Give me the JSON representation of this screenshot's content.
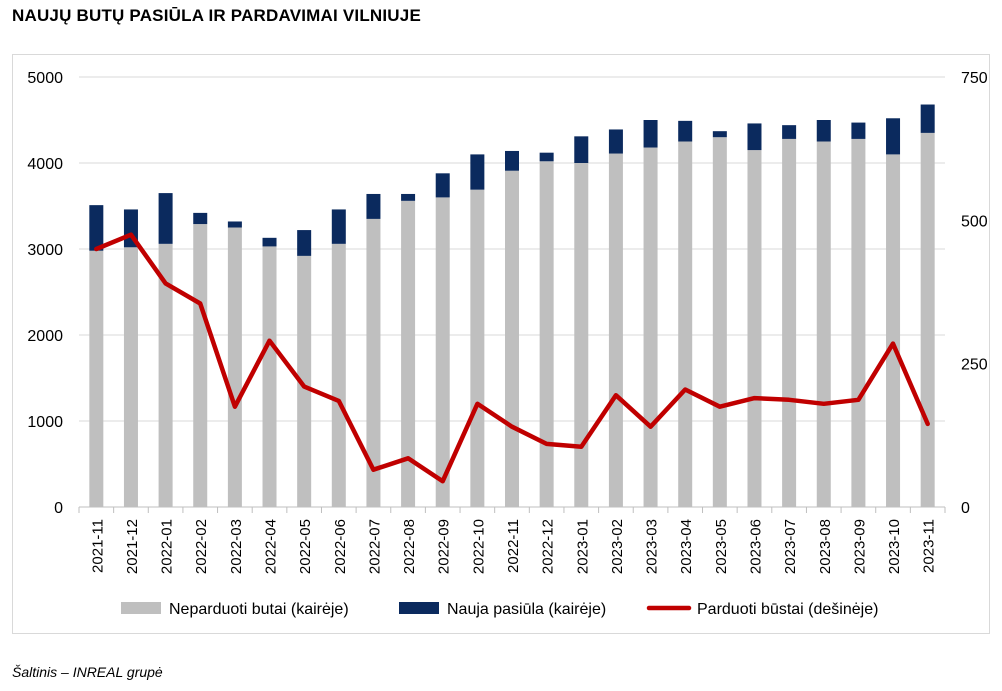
{
  "page": {
    "title": "NAUJŲ BUTŲ PASIŪLA IR PARDAVIMAI VILNIUJE",
    "source": "Šaltinis – INREAL grupė"
  },
  "chart_data": {
    "type": "bar",
    "stacked": true,
    "title": "NAUJŲ BUTŲ PASIŪLA IR PARDAVIMAI VILNIUJE",
    "xlabel": "",
    "ylabel": "",
    "ylim": [
      0,
      5000
    ],
    "y_ticks": [
      0,
      1000,
      2000,
      3000,
      4000,
      5000
    ],
    "y2lim": [
      0,
      750
    ],
    "y2_ticks": [
      0,
      250,
      500,
      750
    ],
    "grid": true,
    "legend_position": "bottom",
    "categories": [
      "2021-11",
      "2021-12",
      "2022-01",
      "2022-02",
      "2022-03",
      "2022-04",
      "2022-05",
      "2022-06",
      "2022-07",
      "2022-08",
      "2022-09",
      "2022-10",
      "2022-11",
      "2022-12",
      "2023-01",
      "2023-02",
      "2023-03",
      "2023-04",
      "2023-05",
      "2023-06",
      "2023-07",
      "2023-08",
      "2023-09",
      "2023-10",
      "2023-11"
    ],
    "series": [
      {
        "name": "Neparduoti butai (kairėje)",
        "type": "bar",
        "axis": "left",
        "color": "#bfbfbf",
        "values": [
          2980,
          3020,
          3060,
          3290,
          3250,
          3030,
          2920,
          3060,
          3350,
          3560,
          3600,
          3690,
          3910,
          4020,
          4000,
          4110,
          4180,
          4250,
          4300,
          4150,
          4280,
          4250,
          4280,
          4100,
          4350
        ]
      },
      {
        "name": "Nauja pasiūla (kairėje)",
        "type": "bar",
        "axis": "left",
        "color": "#0b2a5e",
        "values": [
          530,
          440,
          590,
          130,
          70,
          100,
          300,
          400,
          290,
          80,
          280,
          410,
          230,
          100,
          310,
          280,
          320,
          240,
          70,
          310,
          160,
          250,
          190,
          420,
          330
        ]
      },
      {
        "name": "Parduoti būstai (dešinėje)",
        "type": "line",
        "axis": "right",
        "color": "#c00000",
        "values": [
          450,
          475,
          390,
          355,
          175,
          290,
          210,
          185,
          65,
          85,
          45,
          180,
          140,
          110,
          105,
          195,
          140,
          205,
          175,
          190,
          187,
          180,
          187,
          285,
          145
        ]
      }
    ]
  }
}
